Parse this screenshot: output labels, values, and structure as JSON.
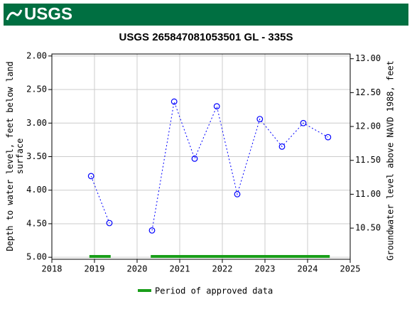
{
  "logo": "USGS",
  "chart_data": {
    "type": "line",
    "title": "USGS 265847081053501 GL - 335S",
    "ylabel": [
      "Depth to water level, feet below land",
      "surface"
    ],
    "y2label": "Groundwater level above NAVD 1988, feet",
    "x": [
      2018.92,
      2019.35,
      null,
      2020.35,
      2020.87,
      2021.35,
      2021.87,
      2022.35,
      2022.88,
      2023.4,
      2023.9,
      2024.48
    ],
    "values": [
      3.79,
      4.49,
      null,
      4.6,
      2.68,
      3.53,
      2.75,
      4.06,
      2.94,
      3.35,
      3.0,
      3.21
    ],
    "color": "#0000ff",
    "xlim": [
      2018,
      2025
    ],
    "xticks": [
      2018,
      2019,
      2020,
      2021,
      2022,
      2023,
      2024,
      2025
    ],
    "ylim": [
      1.97,
      5.03
    ],
    "invert_y": true,
    "yticks": [
      {
        "value": 2,
        "label": "2.00"
      },
      {
        "value": 2.5,
        "label": "2.50"
      },
      {
        "value": 3,
        "label": "3.00"
      },
      {
        "value": 3.5,
        "label": "3.50"
      },
      {
        "value": 4,
        "label": "4.00"
      },
      {
        "value": 4.5,
        "label": "4.50"
      },
      {
        "value": 5,
        "label": "5.00"
      }
    ],
    "y2lim": [
      10.04,
      13.07
    ],
    "y2ticks": [
      {
        "value": 10.5,
        "label": "10.50"
      },
      {
        "value": 11,
        "label": "11.00"
      },
      {
        "value": 11.5,
        "label": "11.50"
      },
      {
        "value": 12,
        "label": "12.00"
      },
      {
        "value": 12.5,
        "label": "12.50"
      },
      {
        "value": 13,
        "label": "13.00"
      }
    ],
    "grid": true,
    "approved_periods": [
      [
        2018.88,
        2019.38
      ],
      [
        2020.32,
        2024.52
      ]
    ],
    "approved_color": "#1a9e1a",
    "legend": "Period of approved data"
  }
}
